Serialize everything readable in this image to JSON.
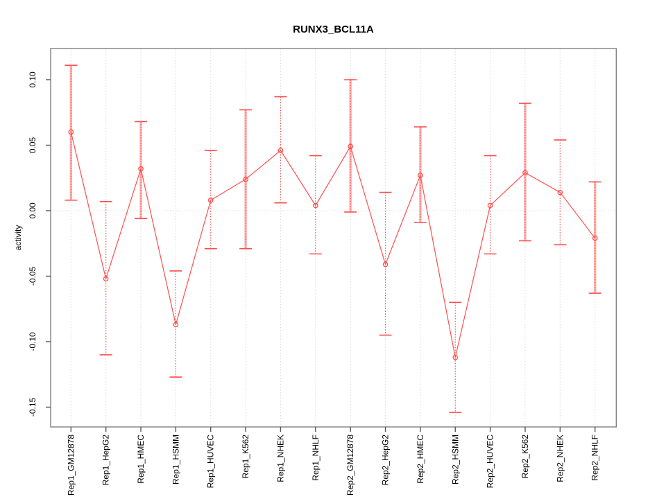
{
  "chart_data": {
    "type": "line",
    "title": "RUNX3_BCL11A",
    "ylabel": "activity",
    "xlabel": "",
    "categories": [
      "Rep1_GM12878",
      "Rep1_HepG2",
      "Rep1_HMEC",
      "Rep1_HSMM",
      "Rep1_HUVEC",
      "Rep1_K562",
      "Rep1_NHEK",
      "Rep1_NHLF",
      "Rep2_GM12878",
      "Rep2_HepG2",
      "Rep2_HMEC",
      "Rep2_HSMM",
      "Rep2_HUVEC",
      "Rep2_K562",
      "Rep2_NHEK",
      "Rep2_NHLF"
    ],
    "series": [
      {
        "name": "activity",
        "values": [
          0.06,
          -0.052,
          0.032,
          -0.087,
          0.008,
          0.024,
          0.046,
          0.004,
          0.049,
          -0.041,
          0.027,
          -0.112,
          0.004,
          0.029,
          0.014,
          -0.021
        ],
        "error_low": [
          0.008,
          -0.11,
          -0.006,
          -0.127,
          -0.029,
          -0.029,
          0.006,
          -0.033,
          -0.001,
          -0.095,
          -0.009,
          -0.154,
          -0.033,
          -0.023,
          -0.026,
          -0.063
        ],
        "error_high": [
          0.111,
          0.007,
          0.068,
          -0.046,
          0.046,
          0.077,
          0.087,
          0.042,
          0.1,
          0.014,
          0.064,
          -0.07,
          0.042,
          0.082,
          0.054,
          0.022
        ],
        "thick_band_bar": [
          true,
          false,
          true,
          false,
          false,
          true,
          false,
          false,
          true,
          false,
          true,
          false,
          false,
          true,
          false,
          true
        ]
      }
    ],
    "ytick_labels": [
      "0.10",
      "0.05",
      "0.00",
      "-0.05",
      "-0.10",
      "-0.15"
    ],
    "ytick_values": [
      0.1,
      0.05,
      0.0,
      -0.05,
      -0.1,
      -0.15
    ],
    "ylim": [
      -0.165,
      0.124
    ],
    "grid": "vertical dotted gridline at each category, dotted horizontal line at y=0",
    "legend": "none",
    "marker": "open-circle",
    "colors": {
      "line": "#ff4d4d",
      "error_band": "#ffb1b1",
      "grid": "#dcdcdc",
      "frame": "#808080",
      "tick": "#555555",
      "text": "#000000",
      "background": "#ffffff"
    }
  }
}
